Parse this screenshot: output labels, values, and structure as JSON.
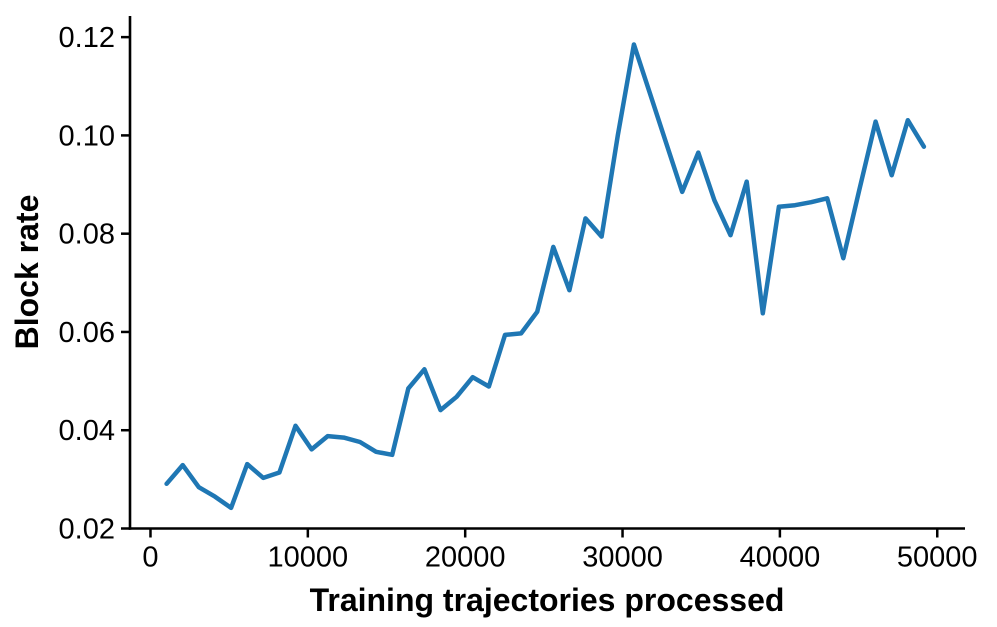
{
  "chart_data": {
    "type": "line",
    "title": "",
    "xlabel": "Training trajectories processed",
    "ylabel": "Block rate",
    "x": [
      1024,
      2048,
      3072,
      4096,
      5120,
      6144,
      7168,
      8192,
      9216,
      10240,
      11264,
      12288,
      13312,
      14336,
      15360,
      16384,
      17408,
      18432,
      19456,
      20480,
      21504,
      22528,
      23552,
      24576,
      25600,
      26624,
      27648,
      28672,
      29696,
      30720,
      31744,
      32768,
      33792,
      34816,
      35840,
      36864,
      37888,
      38912,
      39936,
      40960,
      41984,
      43008,
      44032,
      45056,
      46080,
      47104,
      48128,
      49152
    ],
    "y": [
      0.0291,
      0.0329,
      0.0284,
      0.0265,
      0.0242,
      0.0331,
      0.0303,
      0.0314,
      0.0409,
      0.0361,
      0.0388,
      0.0385,
      0.0376,
      0.0356,
      0.035,
      0.0485,
      0.0524,
      0.0441,
      0.0468,
      0.0508,
      0.0489,
      0.0594,
      0.0597,
      0.0641,
      0.0773,
      0.0685,
      0.0831,
      0.0794,
      0.1,
      0.1185,
      0.1085,
      0.0985,
      0.0885,
      0.0965,
      0.0868,
      0.0797,
      0.0906,
      0.0638,
      0.0855,
      0.0858,
      0.0864,
      0.0872,
      0.075,
      0.089,
      0.1028,
      0.0919,
      0.1031,
      0.0977
    ],
    "x_ticks": [
      0,
      10000,
      20000,
      30000,
      40000,
      50000
    ],
    "x_tick_labels": [
      "0",
      "10000",
      "20000",
      "30000",
      "40000",
      "50000"
    ],
    "y_ticks": [
      0.02,
      0.04,
      0.06,
      0.08,
      0.1,
      0.12
    ],
    "y_tick_labels": [
      "0.02",
      "0.04",
      "0.06",
      "0.08",
      "0.10",
      "0.12"
    ],
    "xlim": [
      -1302,
      51764
    ],
    "ylim": [
      0.02,
      0.1243
    ],
    "line_color": "#1f77b4",
    "line_width": 4.5,
    "axis_color": "#000000",
    "text_color": "#000000",
    "background_color": "#ffffff",
    "grid": false,
    "legend": null
  }
}
